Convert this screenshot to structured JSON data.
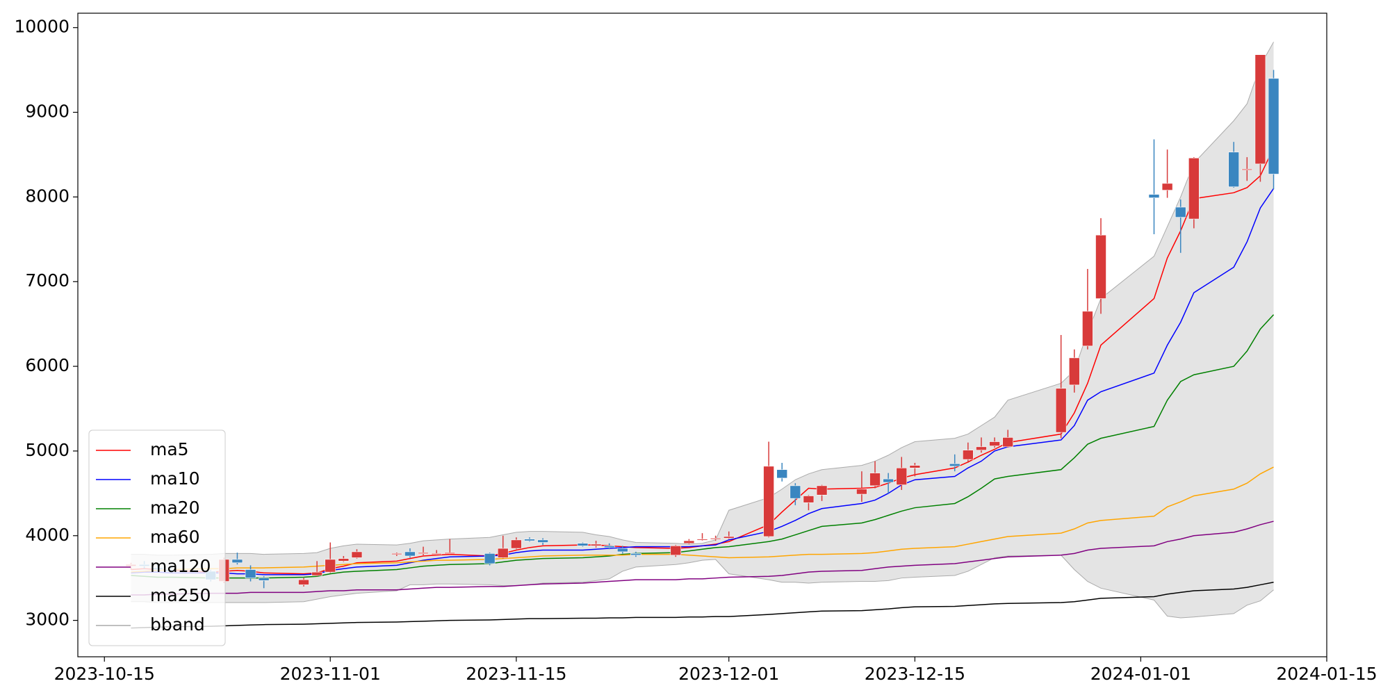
{
  "chart_data": {
    "type": "candlestick",
    "x": [
      "2023-10-17",
      "2023-10-18",
      "2023-10-19",
      "2023-10-20",
      "2023-10-23",
      "2023-10-24",
      "2023-10-25",
      "2023-10-26",
      "2023-10-27",
      "2023-10-30",
      "2023-10-31",
      "2023-11-01",
      "2023-11-02",
      "2023-11-03",
      "2023-11-06",
      "2023-11-07",
      "2023-11-08",
      "2023-11-09",
      "2023-11-10",
      "2023-11-13",
      "2023-11-14",
      "2023-11-15",
      "2023-11-16",
      "2023-11-17",
      "2023-11-20",
      "2023-11-21",
      "2023-11-22",
      "2023-11-23",
      "2023-11-24",
      "2023-11-27",
      "2023-11-28",
      "2023-11-29",
      "2023-11-30",
      "2023-12-01",
      "2023-12-04",
      "2023-12-05",
      "2023-12-06",
      "2023-12-07",
      "2023-12-08",
      "2023-12-11",
      "2023-12-12",
      "2023-12-13",
      "2023-12-14",
      "2023-12-15",
      "2023-12-18",
      "2023-12-19",
      "2023-12-20",
      "2023-12-21",
      "2023-12-22",
      "2023-12-26",
      "2023-12-27",
      "2023-12-28",
      "2023-12-29",
      "2024-01-02",
      "2024-01-03",
      "2024-01-04",
      "2024-01-05",
      "2024-01-08",
      "2024-01-09",
      "2024-01-10",
      "2024-01-11"
    ],
    "open": [
      3640,
      3660,
      3620,
      3600,
      3580,
      3460,
      3720,
      3600,
      3500,
      3420,
      3530,
      3570,
      3700,
      3740,
      3780,
      3810,
      3790,
      3780,
      3790,
      3790,
      3740,
      3850,
      3960,
      3950,
      3910,
      3880,
      3880,
      3850,
      3790,
      3770,
      3910,
      3950,
      3960,
      3970,
      3990,
      4780,
      4590,
      4390,
      4480,
      4490,
      4590,
      4670,
      4600,
      4800,
      4850,
      4900,
      5010,
      5060,
      5050,
      5220,
      5780,
      6240,
      6800,
      8030,
      8080,
      7880,
      7740,
      8530,
      8320,
      8390,
      9400
    ],
    "high": [
      3680,
      3700,
      3660,
      3640,
      3600,
      3740,
      3800,
      3650,
      3520,
      3500,
      3700,
      3920,
      3760,
      3840,
      3800,
      3850,
      3870,
      3830,
      3960,
      3800,
      4000,
      3980,
      3980,
      3970,
      3920,
      3940,
      3910,
      3880,
      3810,
      3890,
      3960,
      4030,
      4000,
      4050,
      5110,
      4860,
      4620,
      4480,
      4600,
      4760,
      4880,
      4740,
      4930,
      4860,
      4960,
      5100,
      5160,
      5160,
      5250,
      6370,
      6200,
      7150,
      7750,
      8680,
      8560,
      7970,
      8470,
      8650,
      8470,
      9680,
      9500
    ],
    "low": [
      3600,
      3610,
      3580,
      3560,
      3460,
      3440,
      3660,
      3460,
      3380,
      3400,
      3520,
      3560,
      3690,
      3730,
      3760,
      3740,
      3770,
      3770,
      3780,
      3650,
      3730,
      3840,
      3930,
      3890,
      3870,
      3860,
      3840,
      3790,
      3750,
      3750,
      3900,
      3940,
      3940,
      3960,
      3980,
      4640,
      4360,
      4300,
      4410,
      4400,
      4560,
      4500,
      4540,
      4700,
      4760,
      4860,
      4980,
      5040,
      5040,
      5150,
      5690,
      6200,
      6620,
      7560,
      7990,
      7340,
      7630,
      8110,
      8190,
      8180,
      8090
    ],
    "close": [
      3660,
      3640,
      3600,
      3580,
      3480,
      3720,
      3680,
      3500,
      3470,
      3480,
      3570,
      3720,
      3730,
      3810,
      3790,
      3760,
      3800,
      3790,
      3800,
      3670,
      3850,
      3950,
      3940,
      3920,
      3880,
      3900,
      3860,
      3810,
      3770,
      3880,
      3940,
      3960,
      3970,
      3990,
      4820,
      4680,
      4440,
      4470,
      4590,
      4550,
      4740,
      4630,
      4800,
      4830,
      4820,
      5010,
      5050,
      5110,
      5160,
      5740,
      6100,
      6650,
      7550,
      7990,
      8160,
      7760,
      8460,
      8120,
      8330,
      9680,
      8270
    ],
    "up_color": "#d83a3a",
    "down_color": "#3a86c0",
    "series": [
      {
        "name": "ma5",
        "color": "#ff0000",
        "values": [
          3600,
          3610,
          3600,
          3590,
          3570,
          3580,
          3590,
          3580,
          3560,
          3550,
          3560,
          3610,
          3640,
          3680,
          3700,
          3730,
          3760,
          3770,
          3780,
          3760,
          3790,
          3830,
          3860,
          3880,
          3890,
          3890,
          3880,
          3870,
          3860,
          3850,
          3860,
          3880,
          3900,
          3930,
          4130,
          4280,
          4420,
          4560,
          4550,
          4560,
          4570,
          4620,
          4680,
          4720,
          4800,
          4870,
          4950,
          5020,
          5100,
          5200,
          5450,
          5800,
          6250,
          6800,
          7280,
          7600,
          7980,
          8050,
          8110,
          8250,
          8580
        ]
      },
      {
        "name": "ma10",
        "color": "#0000ff",
        "values": [
          3560,
          3570,
          3570,
          3560,
          3560,
          3560,
          3550,
          3550,
          3540,
          3540,
          3550,
          3590,
          3610,
          3630,
          3650,
          3680,
          3710,
          3730,
          3750,
          3760,
          3770,
          3800,
          3820,
          3830,
          3830,
          3840,
          3850,
          3860,
          3870,
          3870,
          3870,
          3880,
          3890,
          3950,
          4050,
          4110,
          4180,
          4260,
          4320,
          4380,
          4420,
          4500,
          4600,
          4660,
          4700,
          4800,
          4880,
          5000,
          5050,
          5130,
          5300,
          5600,
          5700,
          5920,
          6250,
          6520,
          6870,
          7170,
          7470,
          7870,
          8100
        ]
      },
      {
        "name": "ma20",
        "color": "#008000",
        "values": [
          3530,
          3520,
          3510,
          3510,
          3500,
          3500,
          3500,
          3500,
          3500,
          3510,
          3520,
          3550,
          3570,
          3580,
          3600,
          3620,
          3640,
          3650,
          3660,
          3670,
          3690,
          3710,
          3720,
          3730,
          3740,
          3750,
          3760,
          3780,
          3790,
          3800,
          3820,
          3840,
          3860,
          3870,
          3930,
          3960,
          4010,
          4060,
          4110,
          4150,
          4190,
          4240,
          4290,
          4330,
          4380,
          4460,
          4560,
          4670,
          4700,
          4780,
          4920,
          5080,
          5150,
          5290,
          5600,
          5820,
          5900,
          6000,
          6180,
          6440,
          6610
        ]
      },
      {
        "name": "ma60",
        "color": "#ffa500",
        "values": [
          3570,
          3580,
          3590,
          3600,
          3610,
          3610,
          3620,
          3620,
          3620,
          3630,
          3640,
          3650,
          3660,
          3670,
          3680,
          3690,
          3700,
          3710,
          3710,
          3720,
          3730,
          3740,
          3750,
          3760,
          3770,
          3770,
          3770,
          3770,
          3780,
          3780,
          3770,
          3760,
          3750,
          3740,
          3750,
          3760,
          3770,
          3780,
          3780,
          3790,
          3800,
          3820,
          3840,
          3850,
          3870,
          3900,
          3930,
          3960,
          3990,
          4030,
          4080,
          4150,
          4180,
          4230,
          4340,
          4400,
          4470,
          4550,
          4620,
          4730,
          4810
        ]
      },
      {
        "name": "ma120",
        "color": "#800080",
        "values": [
          3300,
          3300,
          3310,
          3310,
          3320,
          3320,
          3320,
          3330,
          3330,
          3330,
          3340,
          3350,
          3350,
          3360,
          3360,
          3370,
          3380,
          3390,
          3390,
          3400,
          3400,
          3410,
          3420,
          3430,
          3440,
          3450,
          3460,
          3470,
          3480,
          3480,
          3490,
          3490,
          3500,
          3510,
          3520,
          3530,
          3550,
          3570,
          3580,
          3590,
          3610,
          3630,
          3640,
          3650,
          3670,
          3690,
          3710,
          3730,
          3750,
          3770,
          3790,
          3830,
          3850,
          3880,
          3930,
          3960,
          4000,
          4040,
          4080,
          4130,
          4170
        ]
      },
      {
        "name": "ma250",
        "color": "#000000",
        "values": [
          2910,
          2915,
          2920,
          2925,
          2930,
          2935,
          2940,
          2945,
          2950,
          2955,
          2960,
          2965,
          2970,
          2975,
          2980,
          2985,
          2990,
          2995,
          3000,
          3005,
          3010,
          3015,
          3020,
          3020,
          3025,
          3025,
          3030,
          3030,
          3035,
          3035,
          3040,
          3040,
          3045,
          3045,
          3070,
          3080,
          3090,
          3100,
          3110,
          3115,
          3125,
          3135,
          3150,
          3160,
          3165,
          3175,
          3185,
          3195,
          3200,
          3210,
          3220,
          3240,
          3260,
          3280,
          3310,
          3330,
          3350,
          3370,
          3390,
          3420,
          3450
        ]
      },
      {
        "name": "bband",
        "color": "#aaaaaa",
        "fill": "#e4e4e4",
        "values": [
          3780,
          3780,
          3770,
          3770,
          3780,
          3790,
          3790,
          3790,
          3780,
          3790,
          3800,
          3850,
          3880,
          3900,
          3890,
          3910,
          3940,
          3950,
          3960,
          3980,
          4010,
          4040,
          4050,
          4050,
          4040,
          4010,
          3990,
          3950,
          3920,
          3910,
          3900,
          3910,
          3950,
          4300,
          4450,
          4550,
          4660,
          4730,
          4780,
          4830,
          4880,
          4950,
          5040,
          5110,
          5150,
          5200,
          5300,
          5400,
          5600,
          5800,
          5950,
          6400,
          6800,
          7300,
          7650,
          8000,
          8400,
          8900,
          9100,
          9550,
          9830
        ],
        "lower": [
          3220,
          3220,
          3210,
          3210,
          3210,
          3210,
          3210,
          3210,
          3210,
          3220,
          3250,
          3280,
          3300,
          3320,
          3350,
          3420,
          3420,
          3430,
          3430,
          3420,
          3410,
          3410,
          3420,
          3440,
          3450,
          3470,
          3490,
          3580,
          3630,
          3660,
          3680,
          3710,
          3720,
          3550,
          3480,
          3450,
          3450,
          3440,
          3450,
          3460,
          3460,
          3470,
          3500,
          3510,
          3530,
          3580,
          3660,
          3740,
          3760,
          3770,
          3600,
          3460,
          3380,
          3240,
          3050,
          3030,
          3040,
          3080,
          3180,
          3230,
          3360
        ]
      }
    ],
    "xlim": [
      "2023-10-13",
      "2024-01-15"
    ],
    "xticks": [
      "2023-10-15",
      "2023-11-01",
      "2023-11-15",
      "2023-12-01",
      "2023-12-15",
      "2024-01-01",
      "2024-01-15"
    ],
    "ylim": [
      2570,
      10170
    ],
    "yticks": [
      3000,
      4000,
      5000,
      6000,
      7000,
      8000,
      9000,
      10000
    ],
    "legend": "lower left"
  }
}
